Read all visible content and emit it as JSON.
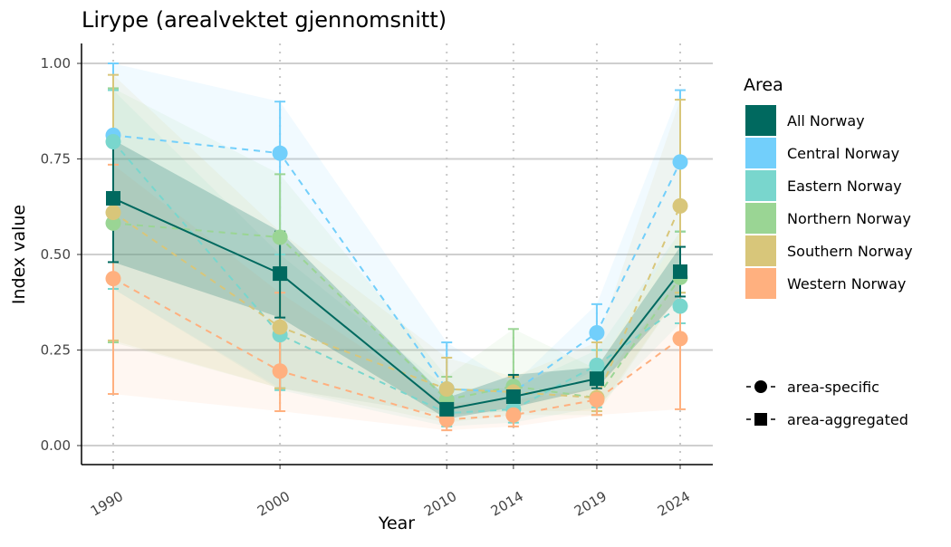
{
  "chart_data": {
    "type": "line",
    "title": "Lirype (arealvektet gjennomsnitt)",
    "xlabel": "Year",
    "ylabel": "Index value",
    "x": [
      1990,
      2000,
      2010,
      2014,
      2019,
      2024
    ],
    "x_tick_labels": [
      "1990",
      "2000",
      "2010",
      "2014",
      "2019",
      "2024"
    ],
    "ylim": [
      -0.05,
      1.05
    ],
    "y_ticks": [
      0,
      0.25,
      0.5,
      0.75,
      1.0
    ],
    "y_tick_labels": [
      "0.00",
      "0.25",
      "0.50",
      "0.75",
      "1.00"
    ],
    "grid": "horizontal major lines, dotted vertical at years",
    "legend_position": "right",
    "legend_title": "Area",
    "shape_legend": [
      {
        "label": "area-specific",
        "shape": "circle"
      },
      {
        "label": "area-aggregated",
        "shape": "square"
      }
    ],
    "series": [
      {
        "name": "All Norway",
        "color": "#00695f",
        "shape": "square",
        "line": "solid",
        "values": [
          0.647,
          0.45,
          0.095,
          0.128,
          0.175,
          0.455
        ],
        "lower": [
          0.48,
          0.335,
          0.07,
          0.1,
          0.15,
          0.39
        ],
        "upper": [
          0.8,
          0.56,
          0.125,
          0.185,
          0.205,
          0.52
        ]
      },
      {
        "name": "Central Norway",
        "color": "#72cffb",
        "shape": "circle",
        "line": "dashed",
        "values": [
          0.812,
          0.765,
          0.148,
          0.14,
          0.295,
          0.742
        ],
        "lower": [
          0.41,
          0.15,
          0.08,
          0.09,
          0.2,
          0.56
        ],
        "upper": [
          1.0,
          0.9,
          0.27,
          0.16,
          0.37,
          0.93
        ]
      },
      {
        "name": "Eastern Norway",
        "color": "#79d6cd",
        "shape": "circle",
        "line": "dashed",
        "values": [
          0.795,
          0.29,
          0.085,
          0.095,
          0.21,
          0.365
        ],
        "lower": [
          0.41,
          0.145,
          0.05,
          0.06,
          0.1,
          0.32
        ],
        "upper": [
          0.93,
          0.5,
          0.15,
          0.15,
          0.25,
          0.56
        ]
      },
      {
        "name": "Northern Norway",
        "color": "#9ad594",
        "shape": "circle",
        "line": "dashed",
        "values": [
          0.582,
          0.545,
          0.12,
          0.155,
          0.125,
          0.44
        ],
        "lower": [
          0.27,
          0.15,
          0.06,
          0.08,
          0.08,
          0.4
        ],
        "upper": [
          0.935,
          0.71,
          0.18,
          0.305,
          0.2,
          0.56
        ]
      },
      {
        "name": "Southern Norway",
        "color": "#d8c67a",
        "shape": "circle",
        "line": "dashed",
        "values": [
          0.61,
          0.31,
          0.148,
          0.14,
          0.125,
          0.627
        ],
        "lower": [
          0.275,
          0.15,
          0.08,
          0.09,
          0.09,
          0.4
        ],
        "upper": [
          0.97,
          0.56,
          0.23,
          0.18,
          0.27,
          0.905
        ]
      },
      {
        "name": "Western Norway",
        "color": "#ffb07f",
        "shape": "circle",
        "line": "dashed",
        "values": [
          0.437,
          0.195,
          0.068,
          0.08,
          0.12,
          0.28
        ],
        "lower": [
          0.135,
          0.09,
          0.04,
          0.05,
          0.08,
          0.095
        ],
        "upper": [
          0.735,
          0.4,
          0.11,
          0.12,
          0.15,
          0.44
        ]
      }
    ]
  }
}
